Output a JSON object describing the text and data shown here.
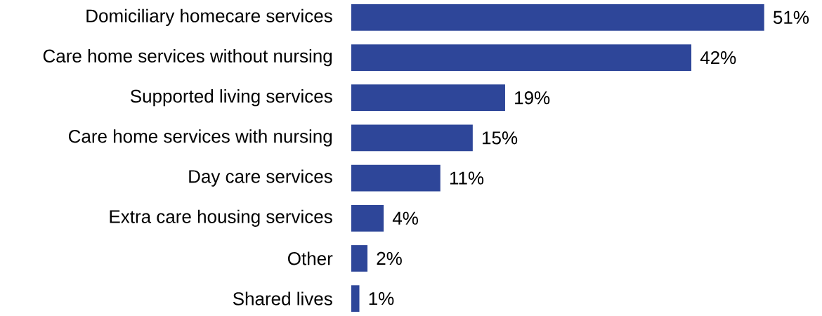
{
  "chart_data": {
    "type": "bar",
    "orientation": "horizontal",
    "color": "#2e4699",
    "categories": [
      "Domiciliary homecare services",
      "Care home services without nursing",
      "Supported living services",
      "Care home services with nursing",
      "Day care services",
      "Extra care housing services",
      "Other",
      "Shared lives"
    ],
    "values": [
      51,
      42,
      19,
      15,
      11,
      4,
      2,
      1
    ],
    "value_labels": [
      "51%",
      "42%",
      "19%",
      "15%",
      "11%",
      "4%",
      "2%",
      "1%"
    ]
  }
}
